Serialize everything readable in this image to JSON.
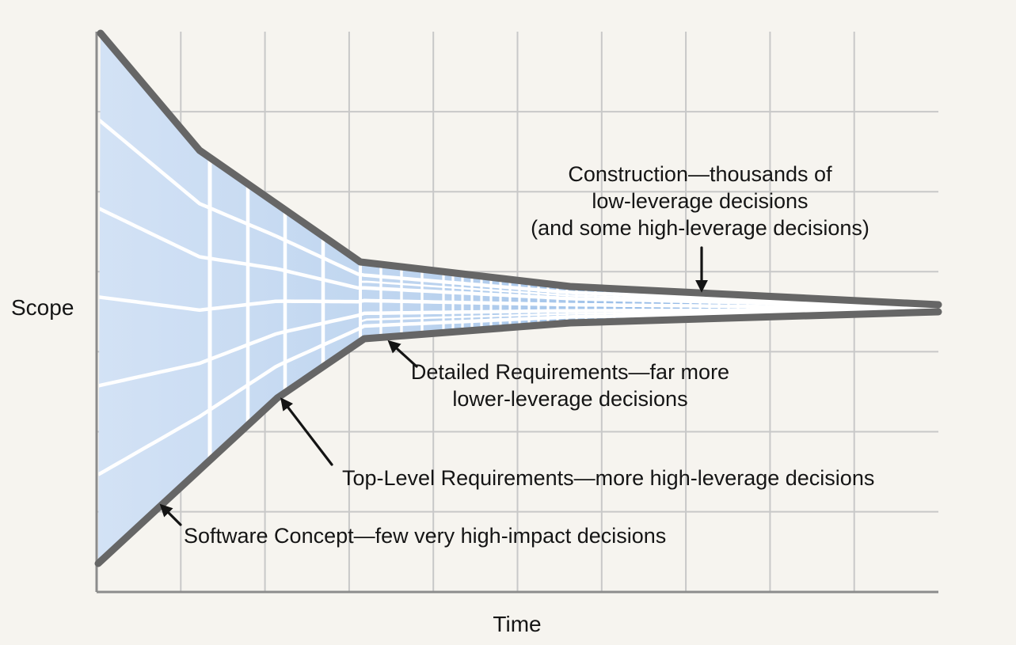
{
  "diagram": {
    "y_axis_label": "Scope",
    "x_axis_label": "Time",
    "annotations": [
      {
        "id": "construction",
        "lines": [
          "Construction—thousands of",
          "low-leverage decisions",
          "(and some high-leverage decisions)"
        ]
      },
      {
        "id": "detailed-requirements",
        "lines": [
          "Detailed Requirements—far more",
          "lower-leverage decisions"
        ]
      },
      {
        "id": "top-level-requirements",
        "lines": [
          "Top-Level Requirements—more high-leverage decisions"
        ]
      },
      {
        "id": "software-concept",
        "lines": [
          "Software Concept—few very high-impact decisions"
        ]
      }
    ],
    "colors": {
      "background": "#f6f4ef",
      "grid": "#c8c8c8",
      "axis": "#8c8c8c",
      "funnel_edge": "#666666",
      "funnel_grid": "#ffffff",
      "arrow": "#141414",
      "text": "#151515",
      "fill_stops": [
        [
          "0%",
          "#d3e2f5"
        ],
        [
          "38%",
          "#bdd4ef"
        ],
        [
          "62%",
          "#9cc0e9"
        ],
        [
          "100%",
          "#84acde"
        ]
      ]
    }
  }
}
